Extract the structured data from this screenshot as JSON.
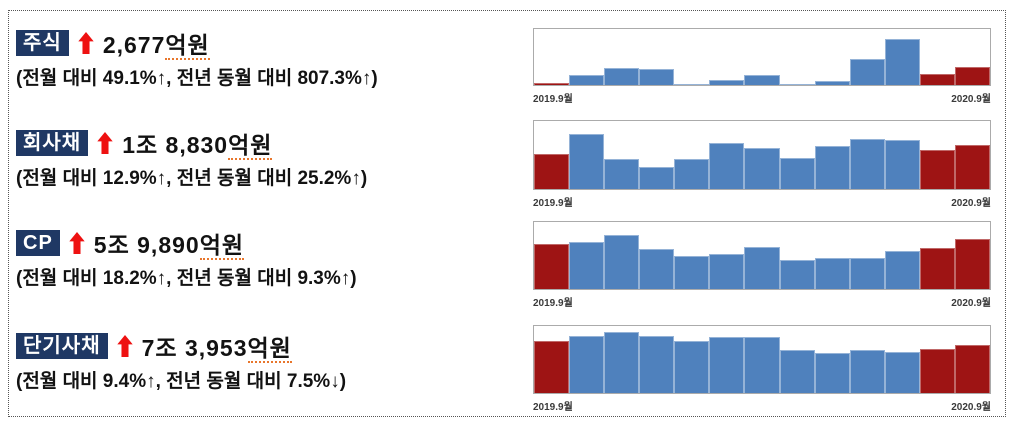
{
  "colors": {
    "badge_navy": "#1F3864",
    "arrow_red": "#EE1111",
    "bar_blue": "#4F81BD",
    "bar_blue_edge": "#95B3D7",
    "bar_red": "#9E1414",
    "bar_red_edge": "#C06868",
    "chart_border": "#ABABAB"
  },
  "sections": [
    {
      "badge": "주식",
      "arrow": "up",
      "value": "2,677",
      "unit": "억원",
      "subline": "(전월 대비 49.1%↑, 전년 동월 대비 807.3%↑)"
    },
    {
      "badge": "회사채",
      "arrow": "up",
      "value": "1조 8,830",
      "unit": "억원",
      "subline": "(전월 대비 12.9%↑, 전년 동월 대비 25.2%↑)"
    },
    {
      "badge": "CP",
      "arrow": "up",
      "value": "5조 9,890",
      "unit": "억원",
      "subline": "(전월 대비 18.2%↑, 전년 동월 대비 9.3%↑)"
    },
    {
      "badge": "단기사채",
      "arrow": "up",
      "value": "7조 3,953",
      "unit": "억원",
      "subline": "(전월 대비 9.4%↑, 전년 동월 대비 7.5%↓)"
    }
  ],
  "chart_data": [
    {
      "type": "bar",
      "series_label": "주식",
      "n_bars": 13,
      "x_range": [
        "2019.9월",
        "2020.9월"
      ],
      "value_scale": "percent-of-plot-height",
      "values": [
        4,
        18,
        31,
        28,
        2,
        9,
        18,
        2,
        7,
        46,
        82,
        20,
        32
      ],
      "bar_colors": [
        "red",
        "blue",
        "blue",
        "blue",
        "blue",
        "blue",
        "blue",
        "blue",
        "blue",
        "blue",
        "blue",
        "red",
        "red"
      ],
      "xlabel_left": "2019.9월",
      "xlabel_right": "2020.9월"
    },
    {
      "type": "bar",
      "series_label": "회사채",
      "n_bars": 13,
      "x_range": [
        "2019.9월",
        "2020.9월"
      ],
      "value_scale": "percent-of-plot-height",
      "values": [
        51,
        81,
        44,
        33,
        44,
        68,
        61,
        45,
        63,
        73,
        72,
        58,
        65
      ],
      "bar_colors": [
        "red",
        "blue",
        "blue",
        "blue",
        "blue",
        "blue",
        "blue",
        "blue",
        "blue",
        "blue",
        "blue",
        "red",
        "red"
      ],
      "xlabel_left": "2019.9월",
      "xlabel_right": "2020.9월"
    },
    {
      "type": "bar",
      "series_label": "CP",
      "n_bars": 13,
      "x_range": [
        "2019.9월",
        "2020.9월"
      ],
      "value_scale": "percent-of-plot-height",
      "values": [
        67,
        70,
        81,
        59,
        50,
        52,
        62,
        44,
        47,
        46,
        56,
        61,
        74
      ],
      "bar_colors": [
        "red",
        "blue",
        "blue",
        "blue",
        "blue",
        "blue",
        "blue",
        "blue",
        "blue",
        "blue",
        "blue",
        "red",
        "red"
      ],
      "xlabel_left": "2019.9월",
      "xlabel_right": "2020.9월"
    },
    {
      "type": "bar",
      "series_label": "단기사채",
      "n_bars": 13,
      "x_range": [
        "2019.9월",
        "2020.9월"
      ],
      "value_scale": "percent-of-plot-height",
      "values": [
        78,
        85,
        91,
        85,
        78,
        83,
        84,
        64,
        59,
        64,
        61,
        66,
        72
      ],
      "bar_colors": [
        "red",
        "blue",
        "blue",
        "blue",
        "blue",
        "blue",
        "blue",
        "blue",
        "blue",
        "blue",
        "blue",
        "red",
        "red"
      ],
      "xlabel_left": "2019.9월",
      "xlabel_right": "2020.9월"
    }
  ]
}
